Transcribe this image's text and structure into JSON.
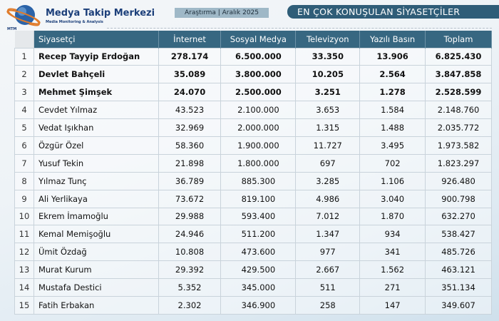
{
  "header": {
    "brand": "Medya Takip Merkezi",
    "brand_sub": "Media Monitoring & Analysis",
    "logo_text": "MTM",
    "tag": "Araştırma | Aralık 2025",
    "title": "EN ÇOK KONUŞULAN SİYASETÇİLER"
  },
  "colors": {
    "header_bg": "#376781",
    "title_bg": "#2f5d78",
    "brand": "#1c3f7a"
  },
  "table": {
    "columns": [
      "",
      "Siyasetçi",
      "İnternet",
      "Sosyal Medya",
      "Televizyon",
      "Yazılı Basın",
      "Toplam"
    ],
    "rows": [
      [
        "1",
        "Recep Tayyip Erdoğan",
        "278.174",
        "6.500.000",
        "33.350",
        "13.906",
        "6.825.430"
      ],
      [
        "2",
        "Devlet Bahçeli",
        "35.089",
        "3.800.000",
        "10.205",
        "2.564",
        "3.847.858"
      ],
      [
        "3",
        "Mehmet Şimşek",
        "24.070",
        "2.500.000",
        "3.251",
        "1.278",
        "2.528.599"
      ],
      [
        "4",
        "Cevdet Yılmaz",
        "43.523",
        "2.100.000",
        "3.653",
        "1.584",
        "2.148.760"
      ],
      [
        "5",
        "Vedat Işıkhan",
        "32.969",
        "2.000.000",
        "1.315",
        "1.488",
        "2.035.772"
      ],
      [
        "6",
        "Özgür Özel",
        "58.360",
        "1.900.000",
        "11.727",
        "3.495",
        "1.973.582"
      ],
      [
        "7",
        "Yusuf Tekin",
        "21.898",
        "1.800.000",
        "697",
        "702",
        "1.823.297"
      ],
      [
        "8",
        "Yılmaz Tunç",
        "36.789",
        "885.300",
        "3.285",
        "1.106",
        "926.480"
      ],
      [
        "9",
        "Ali Yerlikaya",
        "73.672",
        "819.100",
        "4.986",
        "3.040",
        "900.798"
      ],
      [
        "10",
        "Ekrem İmamoğlu",
        "29.988",
        "593.400",
        "7.012",
        "1.870",
        "632.270"
      ],
      [
        "11",
        "Kemal Memişoğlu",
        "24.946",
        "511.200",
        "1.347",
        "934",
        "538.427"
      ],
      [
        "12",
        "Ümit Özdağ",
        "10.808",
        "473.600",
        "977",
        "341",
        "485.726"
      ],
      [
        "13",
        "Murat Kurum",
        "29.392",
        "429.500",
        "2.667",
        "1.562",
        "463.121"
      ],
      [
        "14",
        "Mustafa Destici",
        "5.352",
        "345.000",
        "511",
        "271",
        "351.134"
      ],
      [
        "15",
        "Fatih Erbakan",
        "2.302",
        "346.900",
        "258",
        "147",
        "349.607"
      ]
    ]
  }
}
